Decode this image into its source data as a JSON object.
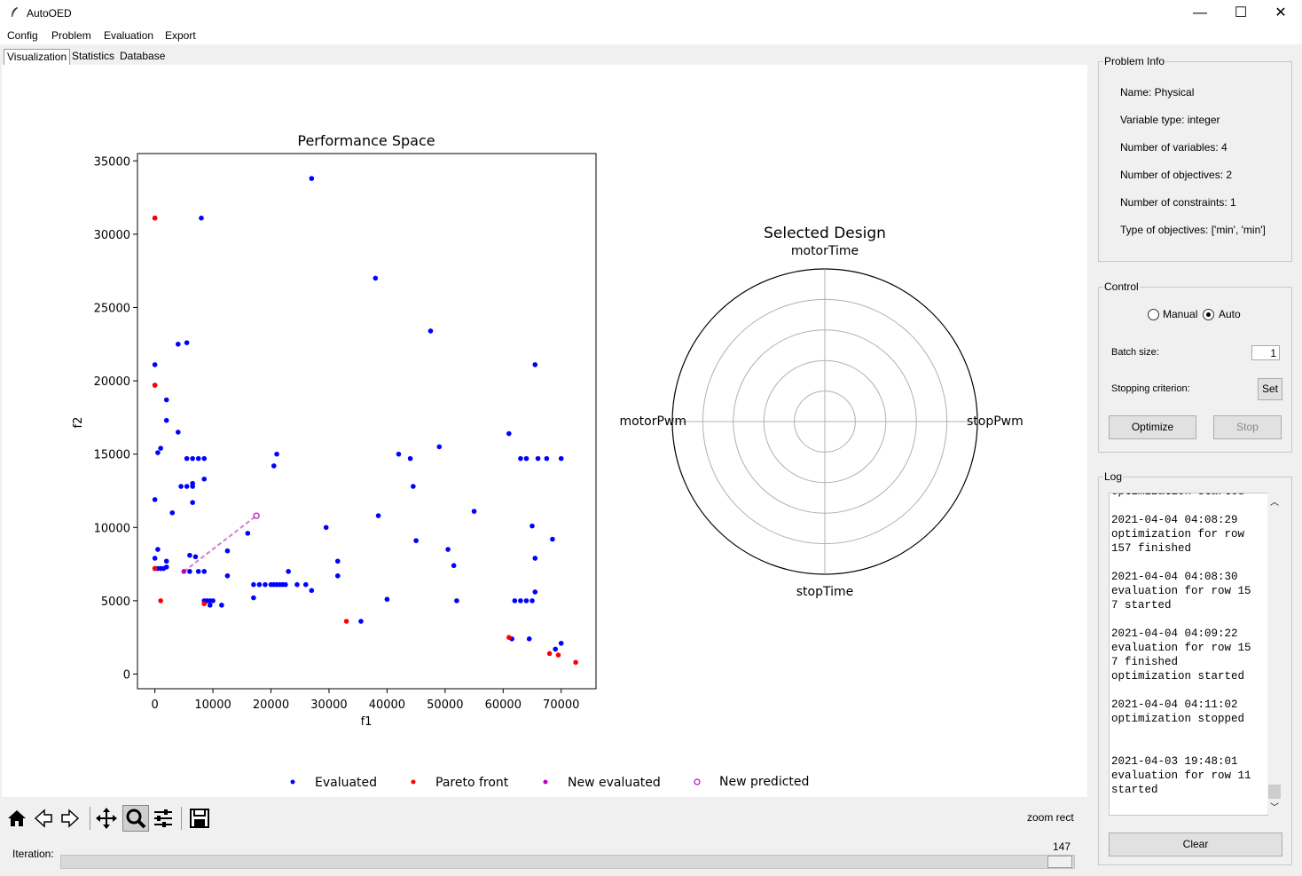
{
  "window": {
    "title": "AutoOED",
    "minimize": "—",
    "maximize": "☐",
    "close": "✕"
  },
  "menu": [
    "Config",
    "Problem",
    "Evaluation",
    "Export"
  ],
  "tabs": [
    "Visualization",
    "Statistics",
    "Database"
  ],
  "chart_data": [
    {
      "type": "scatter",
      "title": "Performance Space",
      "xlabel": "f1",
      "ylabel": "f2",
      "xlim": [
        -3000,
        76000
      ],
      "ylim": [
        -1000,
        35500
      ],
      "xticks": [
        0,
        10000,
        20000,
        30000,
        40000,
        50000,
        60000,
        70000
      ],
      "yticks": [
        0,
        5000,
        10000,
        15000,
        20000,
        25000,
        30000,
        35000
      ],
      "legend_placement": "bottom",
      "series": [
        {
          "name": "Evaluated",
          "color": "#0000ff",
          "marker": "filled",
          "points": [
            [
              0,
              31100
            ],
            [
              8000,
              31100
            ],
            [
              27000,
              33800
            ],
            [
              38000,
              27000
            ],
            [
              47500,
              23400
            ],
            [
              65500,
              21100
            ],
            [
              0,
              21100
            ],
            [
              0,
              19700
            ],
            [
              2000,
              18700
            ],
            [
              2000,
              17300
            ],
            [
              4000,
              22500
            ],
            [
              5500,
              22600
            ],
            [
              4000,
              16500
            ],
            [
              500,
              15100
            ],
            [
              1000,
              15400
            ],
            [
              5500,
              14700
            ],
            [
              6500,
              14700
            ],
            [
              7500,
              14700
            ],
            [
              8500,
              14700
            ],
            [
              66000,
              14700
            ],
            [
              67500,
              14700
            ],
            [
              70000,
              14700
            ],
            [
              63000,
              14700
            ],
            [
              64000,
              14700
            ],
            [
              20500,
              14200
            ],
            [
              21000,
              15000
            ],
            [
              42000,
              15000
            ],
            [
              44000,
              14700
            ],
            [
              49000,
              15500
            ],
            [
              61000,
              16400
            ],
            [
              8500,
              13300
            ],
            [
              4500,
              12800
            ],
            [
              5500,
              12800
            ],
            [
              6500,
              12800
            ],
            [
              6500,
              13000
            ],
            [
              44500,
              12800
            ],
            [
              0,
              11900
            ],
            [
              3000,
              11000
            ],
            [
              6500,
              11700
            ],
            [
              55000,
              11100
            ],
            [
              38500,
              10800
            ],
            [
              29500,
              10000
            ],
            [
              65000,
              10100
            ],
            [
              68500,
              9200
            ],
            [
              45000,
              9100
            ],
            [
              500,
              8500
            ],
            [
              6000,
              8100
            ],
            [
              7000,
              8000
            ],
            [
              0,
              7900
            ],
            [
              12500,
              8400
            ],
            [
              50500,
              8500
            ],
            [
              65500,
              7900
            ],
            [
              16000,
              9600
            ],
            [
              31500,
              7700
            ],
            [
              51500,
              7400
            ],
            [
              0,
              7200
            ],
            [
              500,
              7200
            ],
            [
              1000,
              7200
            ],
            [
              1500,
              7200
            ],
            [
              2000,
              7300
            ],
            [
              2000,
              7700
            ],
            [
              6000,
              7000
            ],
            [
              7500,
              7000
            ],
            [
              8500,
              7000
            ],
            [
              23000,
              7000
            ],
            [
              12500,
              6700
            ],
            [
              31500,
              6700
            ],
            [
              17000,
              6100
            ],
            [
              18000,
              6100
            ],
            [
              19000,
              6100
            ],
            [
              20000,
              6100
            ],
            [
              20500,
              6100
            ],
            [
              21000,
              6100
            ],
            [
              21500,
              6100
            ],
            [
              22000,
              6100
            ],
            [
              22500,
              6100
            ],
            [
              24500,
              6100
            ],
            [
              26000,
              6100
            ],
            [
              27000,
              5700
            ],
            [
              65500,
              5600
            ],
            [
              17000,
              5200
            ],
            [
              8500,
              5000
            ],
            [
              9000,
              5000
            ],
            [
              9500,
              5000
            ],
            [
              10000,
              5000
            ],
            [
              9500,
              4700
            ],
            [
              11500,
              4700
            ],
            [
              40000,
              5100
            ],
            [
              52000,
              5000
            ],
            [
              62000,
              5000
            ],
            [
              63000,
              5000
            ],
            [
              64000,
              5000
            ],
            [
              65000,
              5000
            ],
            [
              35500,
              3600
            ],
            [
              61500,
              2400
            ],
            [
              64500,
              2400
            ],
            [
              70000,
              2100
            ],
            [
              69000,
              1700
            ]
          ]
        },
        {
          "name": "Pareto front",
          "color": "#ff0000",
          "marker": "filled",
          "points": [
            [
              0,
              31100
            ],
            [
              0,
              19700
            ],
            [
              0,
              7200
            ],
            [
              1000,
              5000
            ],
            [
              8500,
              4800
            ],
            [
              33000,
              3600
            ],
            [
              61000,
              2500
            ],
            [
              68000,
              1400
            ],
            [
              69500,
              1300
            ],
            [
              72500,
              800
            ]
          ]
        },
        {
          "name": "New evaluated",
          "color": "#c000c0",
          "marker": "filled",
          "points": [
            [
              5000,
              7000
            ]
          ]
        },
        {
          "name": "New predicted",
          "color": "#c000c0",
          "marker": "hollow",
          "points": [
            [
              17500,
              10800
            ]
          ]
        }
      ]
    },
    {
      "type": "radar",
      "title": "Selected Design",
      "axes": [
        "motorTime",
        "stopPwm",
        "stopTime",
        "motorPwm"
      ],
      "rings": 5
    }
  ],
  "toolbar": {
    "message": "zoom rect"
  },
  "iteration": {
    "label": "Iteration:",
    "value": "147",
    "progress": 1.0
  },
  "problem_info": {
    "title": "Problem Info",
    "lines": [
      "Name: Physical",
      "Variable type: integer",
      "Number of variables: 4",
      "Number of objectives: 2",
      "Number of constraints: 1",
      "Type of objectives: ['min', 'min']"
    ]
  },
  "control": {
    "title": "Control",
    "manual": "Manual",
    "auto": "Auto",
    "batch_label": "Batch size:",
    "batch_value": "1",
    "stopping_label": "Stopping criterion:",
    "set": "Set",
    "optimize": "Optimize",
    "stop": "Stop"
  },
  "log": {
    "title": "Log",
    "text": "optimization started\n\n2021-04-04 04:08:29\noptimization for row\n157 finished\n\n2021-04-04 04:08:30\nevaluation for row 15\n7 started\n\n2021-04-04 04:09:22\nevaluation for row 15\n7 finished\noptimization started\n\n2021-04-04 04:11:02\noptimization stopped\n\n\n2021-04-03 19:48:01\nevaluation for row 11\nstarted",
    "clear": "Clear"
  }
}
